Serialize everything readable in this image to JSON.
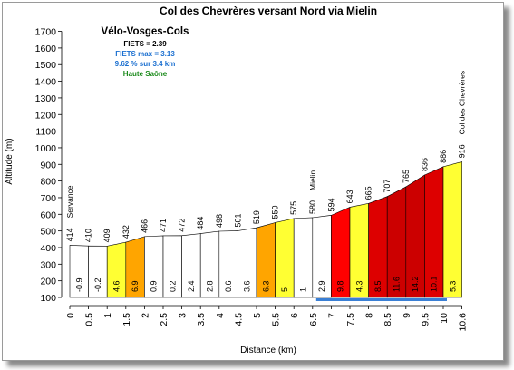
{
  "chart_data": {
    "type": "bar",
    "title": "Col des Chevrères versant Nord via Mielin",
    "xlabel": "Distance (km)",
    "ylabel": "Altitude (m)",
    "ylim": [
      100,
      1700
    ],
    "yticks": [
      "100",
      "200",
      "300",
      "400",
      "500",
      "600",
      "700",
      "800",
      "900",
      "1000",
      "1100",
      "1200",
      "1300",
      "1400",
      "1500",
      "1600",
      "1700"
    ],
    "xticks": [
      "0",
      "0.5",
      "1",
      "1.5",
      "2",
      "2.5",
      "3",
      "3.5",
      "4",
      "4.5",
      "5",
      "5.5",
      "6",
      "6.5",
      "7",
      "7.5",
      "8",
      "8.5",
      "9",
      "9.5",
      "10",
      "10.6"
    ],
    "segments": [
      {
        "grade": "-0.9",
        "color": "#ffffff"
      },
      {
        "grade": "-0.2",
        "color": "#ffffff"
      },
      {
        "grade": "4.6",
        "color": "#ffff33"
      },
      {
        "grade": "6.9",
        "color": "#ffa500"
      },
      {
        "grade": "0.9",
        "color": "#ffffff"
      },
      {
        "grade": "0.2",
        "color": "#ffffff"
      },
      {
        "grade": "2.4",
        "color": "#ffffff"
      },
      {
        "grade": "2.8",
        "color": "#ffffff"
      },
      {
        "grade": "0.6",
        "color": "#ffffff"
      },
      {
        "grade": "3.6",
        "color": "#ffffff"
      },
      {
        "grade": "6.3",
        "color": "#ffa500"
      },
      {
        "grade": "5",
        "color": "#ffff33"
      },
      {
        "grade": "1",
        "color": "#ffffff"
      },
      {
        "grade": "2.9",
        "color": "#ffffff"
      },
      {
        "grade": "9.8",
        "color": "#ff0000"
      },
      {
        "grade": "4.3",
        "color": "#ffff33"
      },
      {
        "grade": "8.5",
        "color": "#dd0000"
      },
      {
        "grade": "11.6",
        "color": "#cc0000"
      },
      {
        "grade": "14.2",
        "color": "#cc0000"
      },
      {
        "grade": "10.1",
        "color": "#dd0000"
      },
      {
        "grade": "5.3",
        "color": "#ffff33"
      }
    ],
    "points": [
      {
        "km": 0,
        "alt": 414
      },
      {
        "km": 0.5,
        "alt": 410
      },
      {
        "km": 1,
        "alt": 409
      },
      {
        "km": 1.5,
        "alt": 432
      },
      {
        "km": 2,
        "alt": 466
      },
      {
        "km": 2.5,
        "alt": 471
      },
      {
        "km": 3,
        "alt": 472
      },
      {
        "km": 3.5,
        "alt": 484
      },
      {
        "km": 4,
        "alt": 498
      },
      {
        "km": 4.5,
        "alt": 501
      },
      {
        "km": 5,
        "alt": 519
      },
      {
        "km": 5.5,
        "alt": 550
      },
      {
        "km": 6,
        "alt": 575
      },
      {
        "km": 6.5,
        "alt": 580
      },
      {
        "km": 7,
        "alt": 594
      },
      {
        "km": 7.5,
        "alt": 643
      },
      {
        "km": 8,
        "alt": 665
      },
      {
        "km": 8.5,
        "alt": 707
      },
      {
        "km": 9,
        "alt": 765
      },
      {
        "km": 9.5,
        "alt": 836
      },
      {
        "km": 10,
        "alt": 886
      },
      {
        "km": 10.6,
        "alt": 916
      }
    ],
    "alt_labels": [
      "414",
      "410",
      "409",
      "432",
      "466",
      "471",
      "472",
      "484",
      "498",
      "501",
      "519",
      "550",
      "575",
      "580",
      "594",
      "643",
      "665",
      "707",
      "765",
      "836",
      "886",
      "916"
    ],
    "place_labels": [
      {
        "km": 0,
        "name": "Servance"
      },
      {
        "km": 6.5,
        "name": "Mielin"
      },
      {
        "km": 10.6,
        "name": "Col des Chevrères"
      }
    ],
    "highlight_range_km": [
      6.5,
      10
    ],
    "highlight_color": "#3a7fd5",
    "grid": false,
    "info": {
      "site": "Vélo-Vosges-Cols",
      "fiets": "FIETS = 2.39",
      "fiets_max": "FIETS max = 3.13",
      "steepest": "9.62 % sur 3.4 km",
      "region": "Haute Saône",
      "fiets_max_color": "#1a6fd0",
      "region_color": "#1a8a1a"
    }
  }
}
